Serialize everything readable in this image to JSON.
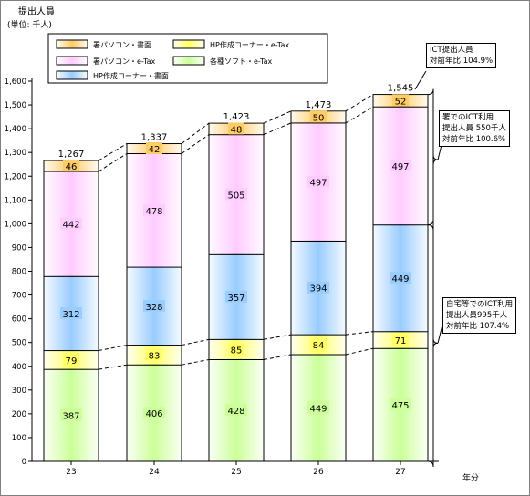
{
  "chart_data": {
    "type": "bar",
    "stacked": true,
    "y_title": "提出人員",
    "y_unit": "(単位: 千人)",
    "x_unit": "年分",
    "categories": [
      "23",
      "24",
      "25",
      "26",
      "27"
    ],
    "yticks": [
      "0",
      "100",
      "200",
      "300",
      "400",
      "500",
      "600",
      "700",
      "800",
      "900",
      "1,000",
      "1,100",
      "1,200",
      "1,300",
      "1,400",
      "1,500",
      "1,600"
    ],
    "ylim": [
      0,
      1600
    ],
    "grid": false,
    "series": [
      {
        "name": "各種ソフト・e-Tax",
        "color": "#ccff99",
        "values": [
          387,
          406,
          428,
          449,
          475
        ]
      },
      {
        "name": "HP作成コーナー・e-Tax",
        "color": "#ffff66",
        "values": [
          79,
          83,
          85,
          84,
          71
        ]
      },
      {
        "name": "HP作成コーナー・書面",
        "color": "#99ccff",
        "values": [
          312,
          328,
          357,
          394,
          449
        ]
      },
      {
        "name": "署パソコン・e-Tax",
        "color": "#ffccff",
        "values": [
          442,
          478,
          505,
          497,
          497
        ]
      },
      {
        "name": "署パソコン・書面",
        "color": "#ffcc66",
        "values": [
          46,
          42,
          48,
          50,
          52
        ]
      }
    ],
    "totals": [
      "1,267",
      "1,337",
      "1,423",
      "1,473",
      "1,545"
    ],
    "legend_placement": "top-left",
    "legend_order": [
      "署パソコン・書面",
      "HP作成コーナー・e-Tax",
      "署パソコン・e-Tax",
      "各種ソフト・e-Tax",
      "HP作成コーナー・書面"
    ]
  },
  "annotations": {
    "total": [
      "ICT提出人員",
      "対前年比  104.9%"
    ],
    "office": [
      "署でのICT利用",
      "提出人員  550千人",
      "対前年比  100.6%"
    ],
    "home": [
      "自宅等でのICT利用",
      "提出人員995千人",
      "対前年比  107.4%"
    ]
  }
}
